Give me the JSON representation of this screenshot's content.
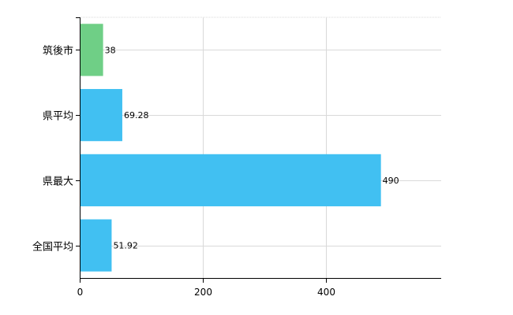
{
  "chart_data": {
    "type": "bar",
    "orientation": "horizontal",
    "categories": [
      "筑後市",
      "県平均",
      "県最大",
      "全国平均"
    ],
    "values": [
      38,
      69.28,
      490,
      51.92
    ],
    "data_labels": [
      "38",
      "69.28",
      "490",
      "51.92"
    ],
    "x_ticks": [
      0,
      200,
      400
    ],
    "x_tick_labels": [
      "0",
      "200",
      "400"
    ],
    "xlim": [
      0,
      588
    ],
    "title": "",
    "xlabel": "",
    "ylabel": "",
    "grid": true,
    "legend": "none",
    "colors": {
      "highlight": "#6fcf86",
      "default": "#41c0f2",
      "grid": "#d9d9d9",
      "axis": "#000000"
    },
    "bar_colors": [
      "#6fcf86",
      "#41c0f2",
      "#41c0f2",
      "#41c0f2"
    ]
  }
}
